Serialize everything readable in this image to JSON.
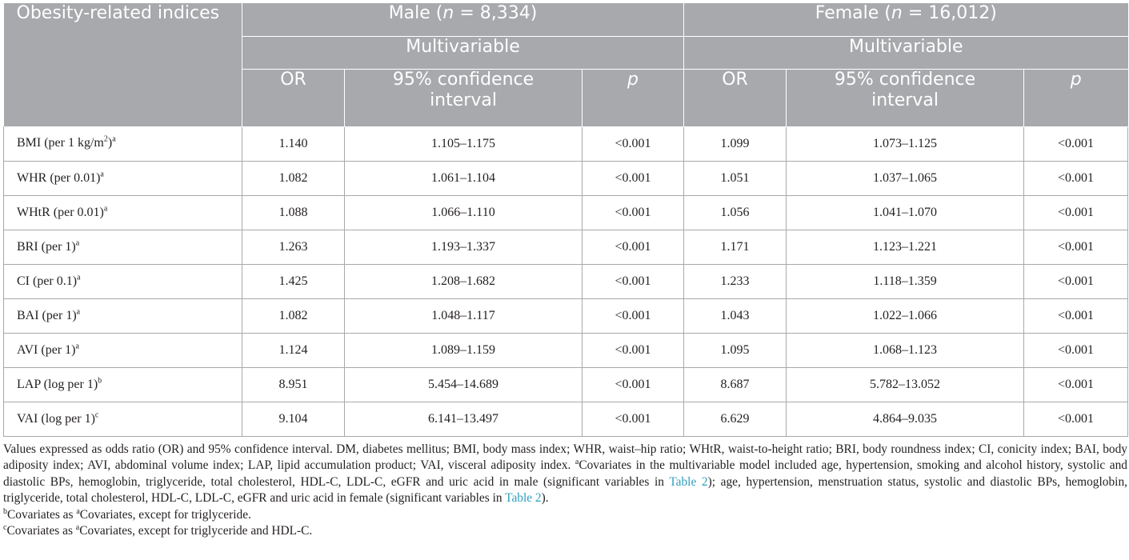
{
  "table": {
    "header": {
      "indices_label": "Obesity-related indices",
      "male_label": "Male (",
      "male_n": "n",
      "male_count": " = 8,334)",
      "female_label": "Female (",
      "female_n": "n",
      "female_count": " = 16,012)",
      "male_model": "Multivariable",
      "female_model": "Multivariable",
      "or": "OR",
      "ci_line1": "95% confidence",
      "ci_line2": "interval",
      "p": "p"
    },
    "rows": [
      {
        "name": "BMI (per 1 kg/m",
        "sq": "2",
        "close": ")",
        "sup": "a",
        "m_or": "1.140",
        "m_ci": "1.105–1.175",
        "m_p": "<0.001",
        "f_or": "1.099",
        "f_ci": "1.073–1.125",
        "f_p": "<0.001"
      },
      {
        "name": "WHR (per 0.01)",
        "sup": "a",
        "m_or": "1.082",
        "m_ci": "1.061–1.104",
        "m_p": "<0.001",
        "f_or": "1.051",
        "f_ci": "1.037–1.065",
        "f_p": "<0.001"
      },
      {
        "name": "WHtR (per 0.01)",
        "sup": "a",
        "m_or": "1.088",
        "m_ci": "1.066–1.110",
        "m_p": "<0.001",
        "f_or": "1.056",
        "f_ci": "1.041–1.070",
        "f_p": "<0.001"
      },
      {
        "name": "BRI (per 1)",
        "sup": "a",
        "m_or": "1.263",
        "m_ci": "1.193–1.337",
        "m_p": "<0.001",
        "f_or": "1.171",
        "f_ci": "1.123–1.221",
        "f_p": "<0.001"
      },
      {
        "name": "CI (per 0.1)",
        "sup": "a",
        "m_or": "1.425",
        "m_ci": "1.208–1.682",
        "m_p": "<0.001",
        "f_or": "1.233",
        "f_ci": "1.118–1.359",
        "f_p": "<0.001"
      },
      {
        "name": "BAI (per 1)",
        "sup": "a",
        "m_or": "1.082",
        "m_ci": "1.048–1.117",
        "m_p": "<0.001",
        "f_or": "1.043",
        "f_ci": "1.022–1.066",
        "f_p": "<0.001"
      },
      {
        "name": "AVI (per 1)",
        "sup": "a",
        "m_or": "1.124",
        "m_ci": "1.089–1.159",
        "m_p": "<0.001",
        "f_or": "1.095",
        "f_ci": "1.068–1.123",
        "f_p": "<0.001"
      },
      {
        "name": "LAP (log per 1)",
        "sup": "b",
        "m_or": "8.951",
        "m_ci": "5.454–14.689",
        "m_p": "<0.001",
        "f_or": "8.687",
        "f_ci": "5.782–13.052",
        "f_p": "<0.001"
      },
      {
        "name": "VAI (log per 1)",
        "sup": "c",
        "m_or": "9.104",
        "m_ci": "6.141–13.497",
        "m_p": "<0.001",
        "f_or": "6.629",
        "f_ci": "4.864–9.035",
        "f_p": "<0.001"
      }
    ]
  },
  "notes": {
    "main_a": "Values expressed as odds ratio (OR) and 95% confidence interval. DM, diabetes mellitus; BMI, body mass index; WHR, waist–hip ratio; WHtR, waist-to-height ratio; BRI, body roundness index; CI, conicity index; BAI, body adiposity index; AVI, abdominal volume index; LAP, lipid accumulation product; VAI, visceral adiposity index. ",
    "main_sup": "a",
    "main_b": "Covariates in the multivariable model included age, hypertension, smoking and alcohol history, systolic and diastolic BPs, hemoglobin, triglyceride, total cholesterol, HDL-C, LDL-C, eGFR and uric acid in male (significant variables in ",
    "link1": "Table 2",
    "main_c": "); age, hypertension, menstruation status, systolic and diastolic BPs, hemoglobin, triglyceride, total cholesterol, HDL-C, LDL-C, eGFR and uric acid in female (significant variables in ",
    "link2": "Table 2",
    "main_d": ").",
    "b_sup": "b",
    "b_pre": "Covariates as ",
    "b_sup2": "a",
    "b_post": "Covariates, except for triglyceride.",
    "c_sup": "c",
    "c_pre": "Covariates as ",
    "c_sup2": "a",
    "c_post": "Covariates, except for triglyceride and HDL-C."
  },
  "colors": {
    "header_bg": "#a7a9ac",
    "link": "#2f9fc0"
  }
}
